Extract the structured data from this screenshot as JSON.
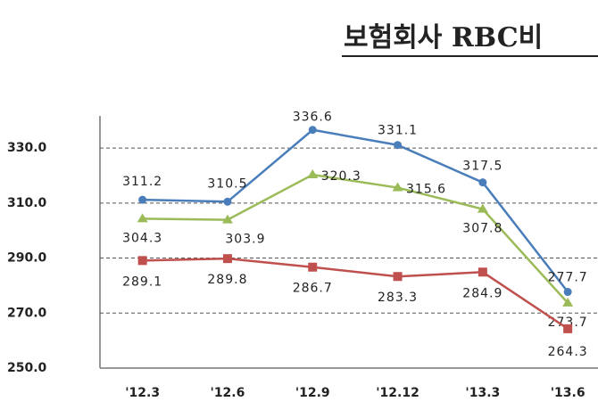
{
  "chart_data": {
    "type": "line",
    "title": "보험회사 RBC비",
    "categories": [
      "'12.3",
      "'12.6",
      "'12.9",
      "'12.12",
      "'13.3",
      "'13.6"
    ],
    "series": [
      {
        "color": "#4a7ebb",
        "marker": "circle",
        "values": [
          311.2,
          310.5,
          336.6,
          331.1,
          317.5,
          277.7
        ]
      },
      {
        "color": "#9bbb59",
        "marker": "triangle",
        "values": [
          304.3,
          303.9,
          320.3,
          315.6,
          307.8,
          273.7
        ]
      },
      {
        "color": "#c0504d",
        "marker": "square",
        "values": [
          289.1,
          289.8,
          286.7,
          283.3,
          284.9,
          264.3
        ]
      }
    ],
    "ylim": [
      250,
      341.7
    ],
    "yticks": [
      {
        "value": 250,
        "label": "250.0"
      },
      {
        "value": 270,
        "label": "270.0"
      },
      {
        "value": 290,
        "label": "290.0"
      },
      {
        "value": 310,
        "label": "310.0"
      },
      {
        "value": 330,
        "label": "330.0"
      }
    ],
    "grid": true
  }
}
